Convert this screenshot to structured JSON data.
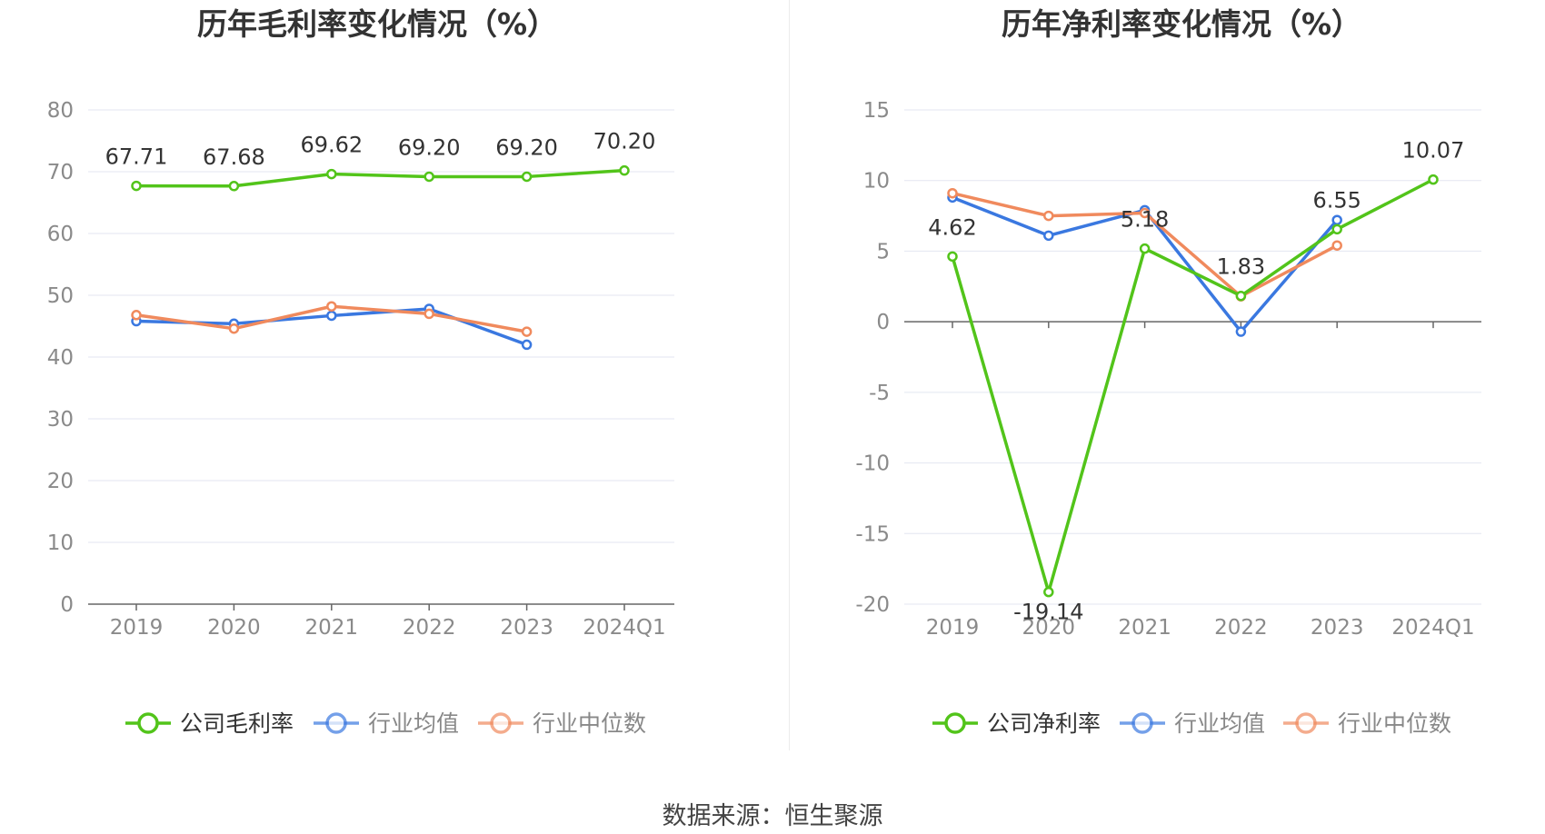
{
  "source": "数据来源：恒生聚源",
  "colors": {
    "company": "#52c41a",
    "avg": "#3a78e0",
    "median": "#f08a5d",
    "grid": "#e3e6f0",
    "axis": "#666666",
    "tick": "#8a8a8a",
    "label": "#333333"
  },
  "chart_data": [
    {
      "type": "line",
      "title": "历年毛利率变化情况（%）",
      "categories": [
        "2019",
        "2020",
        "2021",
        "2022",
        "2023",
        "2024Q1"
      ],
      "ylim": [
        0,
        80
      ],
      "yticks": [
        "0",
        "10",
        "20",
        "30",
        "40",
        "50",
        "60",
        "70",
        "80"
      ],
      "grid": true,
      "legend_position": "bottom",
      "series": [
        {
          "name": "公司毛利率",
          "color": "#52c41a",
          "values": [
            67.71,
            67.68,
            69.62,
            69.2,
            69.2,
            70.2
          ],
          "labels": [
            "67.71",
            "67.68",
            "69.62",
            "69.20",
            "69.20",
            "70.20"
          ]
        },
        {
          "name": "行业均值",
          "color": "#3a78e0",
          "values": [
            45.8,
            45.4,
            46.7,
            47.8,
            42.0,
            null
          ]
        },
        {
          "name": "行业中位数",
          "color": "#f08a5d",
          "values": [
            46.8,
            44.6,
            48.2,
            47.0,
            44.1,
            null
          ]
        }
      ]
    },
    {
      "type": "line",
      "title": "历年净利率变化情况（%）",
      "categories": [
        "2019",
        "2020",
        "2021",
        "2022",
        "2023",
        "2024Q1"
      ],
      "ylim": [
        -20,
        15
      ],
      "yticks": [
        "-20",
        "-15",
        "-10",
        "-5",
        "0",
        "5",
        "10",
        "15"
      ],
      "grid": true,
      "legend_position": "bottom",
      "series": [
        {
          "name": "公司净利率",
          "color": "#52c41a",
          "values": [
            4.62,
            -19.14,
            5.18,
            1.83,
            6.55,
            10.07
          ],
          "labels": [
            "4.62",
            "-19.14",
            "5.18",
            "1.83",
            "6.55",
            "10.07"
          ]
        },
        {
          "name": "行业均值",
          "color": "#3a78e0",
          "values": [
            8.8,
            6.1,
            7.9,
            -0.7,
            7.2,
            null
          ]
        },
        {
          "name": "行业中位数",
          "color": "#f08a5d",
          "values": [
            9.1,
            7.5,
            7.7,
            1.8,
            5.4,
            null
          ]
        }
      ]
    }
  ]
}
